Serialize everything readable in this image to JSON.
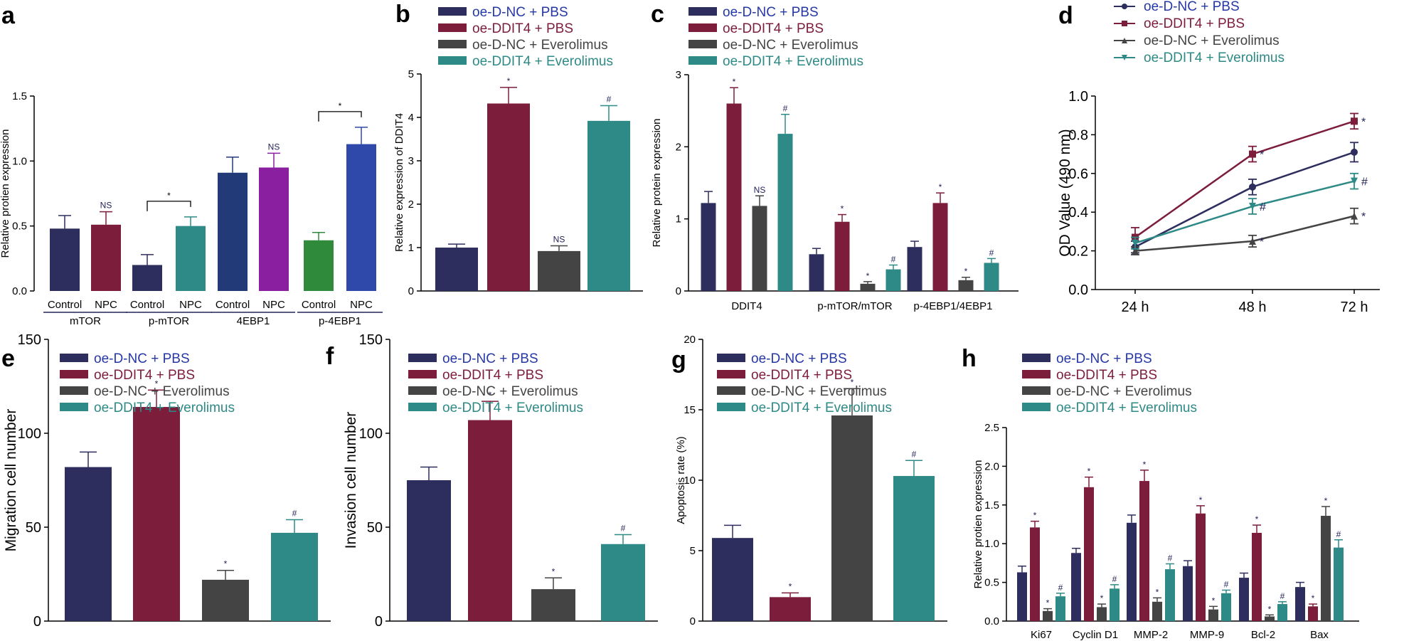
{
  "colors": {
    "navy": "#2e2e5e",
    "crimson": "#7d1d3c",
    "dark": "#444444",
    "teal": "#2e8a86",
    "blue": "#1f2f9f",
    "purple": "#8a1fa0",
    "green": "#2f8a3b",
    "royal": "#2e49aa",
    "navyCat": "#233a78",
    "legendBlue": "#2538a6",
    "legendRed": "#7d1d3c",
    "legendGrey": "#444444",
    "legendTeal": "#2e8a86"
  },
  "legend_entries": [
    "oe-D-NC + PBS",
    "oe-DDIT4 + PBS",
    "oe-D-NC + Everolimus",
    "oe-DDIT4 + Everolimus"
  ],
  "chart_data": [
    {
      "panel": "a",
      "type": "bar",
      "ylabel": "Relative protien expression",
      "ylim": [
        0,
        1.5
      ],
      "yticks": [
        "0.0",
        "0.5",
        "1.0",
        "1.5"
      ],
      "bar_labels": [
        "Control",
        "NPC",
        "Control",
        "NPC",
        "Control",
        "NPC",
        "Control",
        "NPC"
      ],
      "groups": [
        "mTOR",
        "p-mTOR",
        "4EBP1",
        "p-4EBP1"
      ],
      "values": [
        0.48,
        0.51,
        0.2,
        0.5,
        0.91,
        0.95,
        0.39,
        1.13
      ],
      "errors": [
        0.1,
        0.1,
        0.08,
        0.07,
        0.12,
        0.11,
        0.06,
        0.13
      ],
      "marks": [
        "",
        "NS",
        "",
        "",
        "",
        "NS",
        "",
        ""
      ],
      "brackets": [
        {
          "from": 2,
          "to": 3,
          "label": "*"
        },
        {
          "from": 6,
          "to": 7,
          "label": "*"
        }
      ]
    },
    {
      "panel": "b",
      "type": "bar",
      "ylabel": "Relative expression of DDIT4",
      "ylim": [
        0,
        5
      ],
      "yticks": [
        "0",
        "1",
        "2",
        "3",
        "4",
        "5"
      ],
      "values": [
        1.0,
        4.32,
        0.92,
        3.92
      ],
      "errors": [
        0.08,
        0.37,
        0.12,
        0.35
      ],
      "marks": [
        "",
        "*",
        "NS",
        "#"
      ]
    },
    {
      "panel": "c",
      "type": "bar",
      "ylabel": "Relative protein expression",
      "ylim": [
        0,
        3
      ],
      "yticks": [
        "0",
        "1",
        "2",
        "3"
      ],
      "categories": [
        "DDIT4",
        "p-mTOR/mTOR",
        "p-4EBP1/4EBP1"
      ],
      "series": [
        {
          "name": "oe-D-NC + PBS",
          "values": [
            1.22,
            0.51,
            0.61
          ],
          "errors": [
            0.16,
            0.08,
            0.08
          ]
        },
        {
          "name": "oe-DDIT4 + PBS",
          "values": [
            2.6,
            0.96,
            1.22
          ],
          "errors": [
            0.22,
            0.1,
            0.14
          ]
        },
        {
          "name": "oe-D-NC + Everolimus",
          "values": [
            1.18,
            0.1,
            0.15
          ],
          "errors": [
            0.14,
            0.03,
            0.04
          ]
        },
        {
          "name": "oe-DDIT4 + Everolimus",
          "values": [
            2.18,
            0.3,
            0.39
          ],
          "errors": [
            0.27,
            0.06,
            0.06
          ]
        }
      ],
      "marks": [
        [
          "",
          "",
          ""
        ],
        [
          "*",
          "*",
          "*"
        ],
        [
          "NS",
          "*",
          "*"
        ],
        [
          "#",
          "#",
          "#"
        ]
      ]
    },
    {
      "panel": "d",
      "type": "line",
      "ylabel": "OD Value (490 nm)",
      "ylim": [
        0,
        1.0
      ],
      "yticks": [
        "0.0",
        "0.2",
        "0.4",
        "0.6",
        "0.8",
        "1.0"
      ],
      "x": [
        "24 h",
        "48 h",
        "72 h"
      ],
      "series": [
        {
          "name": "oe-D-NC + PBS",
          "values": [
            0.22,
            0.53,
            0.71
          ],
          "errors": [
            0.03,
            0.04,
            0.05
          ],
          "marker": "circle",
          "end_mark": ""
        },
        {
          "name": "oe-DDIT4 + PBS",
          "values": [
            0.27,
            0.7,
            0.87
          ],
          "errors": [
            0.05,
            0.04,
            0.04
          ],
          "marker": "square",
          "end_mark": "*"
        },
        {
          "name": "oe-D-NC + Everolimus",
          "values": [
            0.2,
            0.25,
            0.38
          ],
          "errors": [
            0.02,
            0.03,
            0.04
          ],
          "marker": "triangle-up",
          "end_mark": "*"
        },
        {
          "name": "oe-DDIT4 + Everolimus",
          "values": [
            0.24,
            0.43,
            0.56
          ],
          "errors": [
            0.03,
            0.04,
            0.04
          ],
          "marker": "triangle-down",
          "end_mark": "#"
        }
      ],
      "marks48": [
        "",
        "*",
        "*",
        "#"
      ]
    },
    {
      "panel": "e",
      "type": "bar",
      "ylabel": "Migration cell number",
      "ylim": [
        0,
        150
      ],
      "yticks": [
        "0",
        "50",
        "100",
        "150"
      ],
      "values": [
        82,
        114,
        22,
        47
      ],
      "errors": [
        8,
        9,
        5,
        7
      ],
      "marks": [
        "",
        "*",
        "*",
        "#"
      ]
    },
    {
      "panel": "f",
      "type": "bar",
      "ylabel": "Invasion cell number",
      "ylim": [
        0,
        150
      ],
      "yticks": [
        "0",
        "50",
        "100",
        "150"
      ],
      "values": [
        75,
        107,
        17,
        41
      ],
      "errors": [
        7,
        10,
        6,
        5
      ],
      "marks": [
        "",
        "*",
        "*",
        "#"
      ]
    },
    {
      "panel": "g",
      "type": "bar",
      "ylabel": "Apoptosis rate (%)",
      "ylim": [
        0,
        20
      ],
      "yticks": [
        "0",
        "5",
        "10",
        "15",
        "20"
      ],
      "values": [
        5.9,
        1.7,
        14.6,
        10.3
      ],
      "errors": [
        0.9,
        0.3,
        1.9,
        1.1
      ],
      "marks": [
        "",
        "*",
        "*",
        "#"
      ]
    },
    {
      "panel": "h",
      "type": "bar",
      "ylabel": "Relative protien expression",
      "ylim": [
        0,
        2.5
      ],
      "yticks": [
        "0.0",
        "0.5",
        "1.0",
        "1.5",
        "2.0",
        "2.5"
      ],
      "categories": [
        "Ki67",
        "Cyclin D1",
        "MMP-2",
        "MMP-9",
        "Bcl-2",
        "Bax"
      ],
      "series": [
        {
          "name": "oe-D-NC + PBS",
          "values": [
            0.63,
            0.88,
            1.27,
            0.71,
            0.56,
            0.44
          ],
          "errors": [
            0.08,
            0.06,
            0.1,
            0.07,
            0.06,
            0.06
          ]
        },
        {
          "name": "oe-DDIT4 + PBS",
          "values": [
            1.21,
            1.73,
            1.81,
            1.39,
            1.14,
            0.19
          ],
          "errors": [
            0.08,
            0.13,
            0.14,
            0.1,
            0.1,
            0.03
          ]
        },
        {
          "name": "oe-D-NC + Everolimus",
          "values": [
            0.13,
            0.18,
            0.25,
            0.15,
            0.06,
            1.36
          ],
          "errors": [
            0.03,
            0.04,
            0.05,
            0.04,
            0.02,
            0.12
          ]
        },
        {
          "name": "oe-DDIT4 + Everolimus",
          "values": [
            0.32,
            0.42,
            0.67,
            0.36,
            0.22,
            0.95
          ],
          "errors": [
            0.04,
            0.05,
            0.07,
            0.04,
            0.03,
            0.1
          ]
        }
      ],
      "marks": [
        [
          "",
          "",
          "",
          "",
          "",
          ""
        ],
        [
          "*",
          "*",
          "*",
          "*",
          "*",
          "*"
        ],
        [
          "*",
          "*",
          "*",
          "*",
          "*",
          "*"
        ],
        [
          "#",
          "#",
          "#",
          "#",
          "#",
          "#"
        ]
      ]
    }
  ]
}
